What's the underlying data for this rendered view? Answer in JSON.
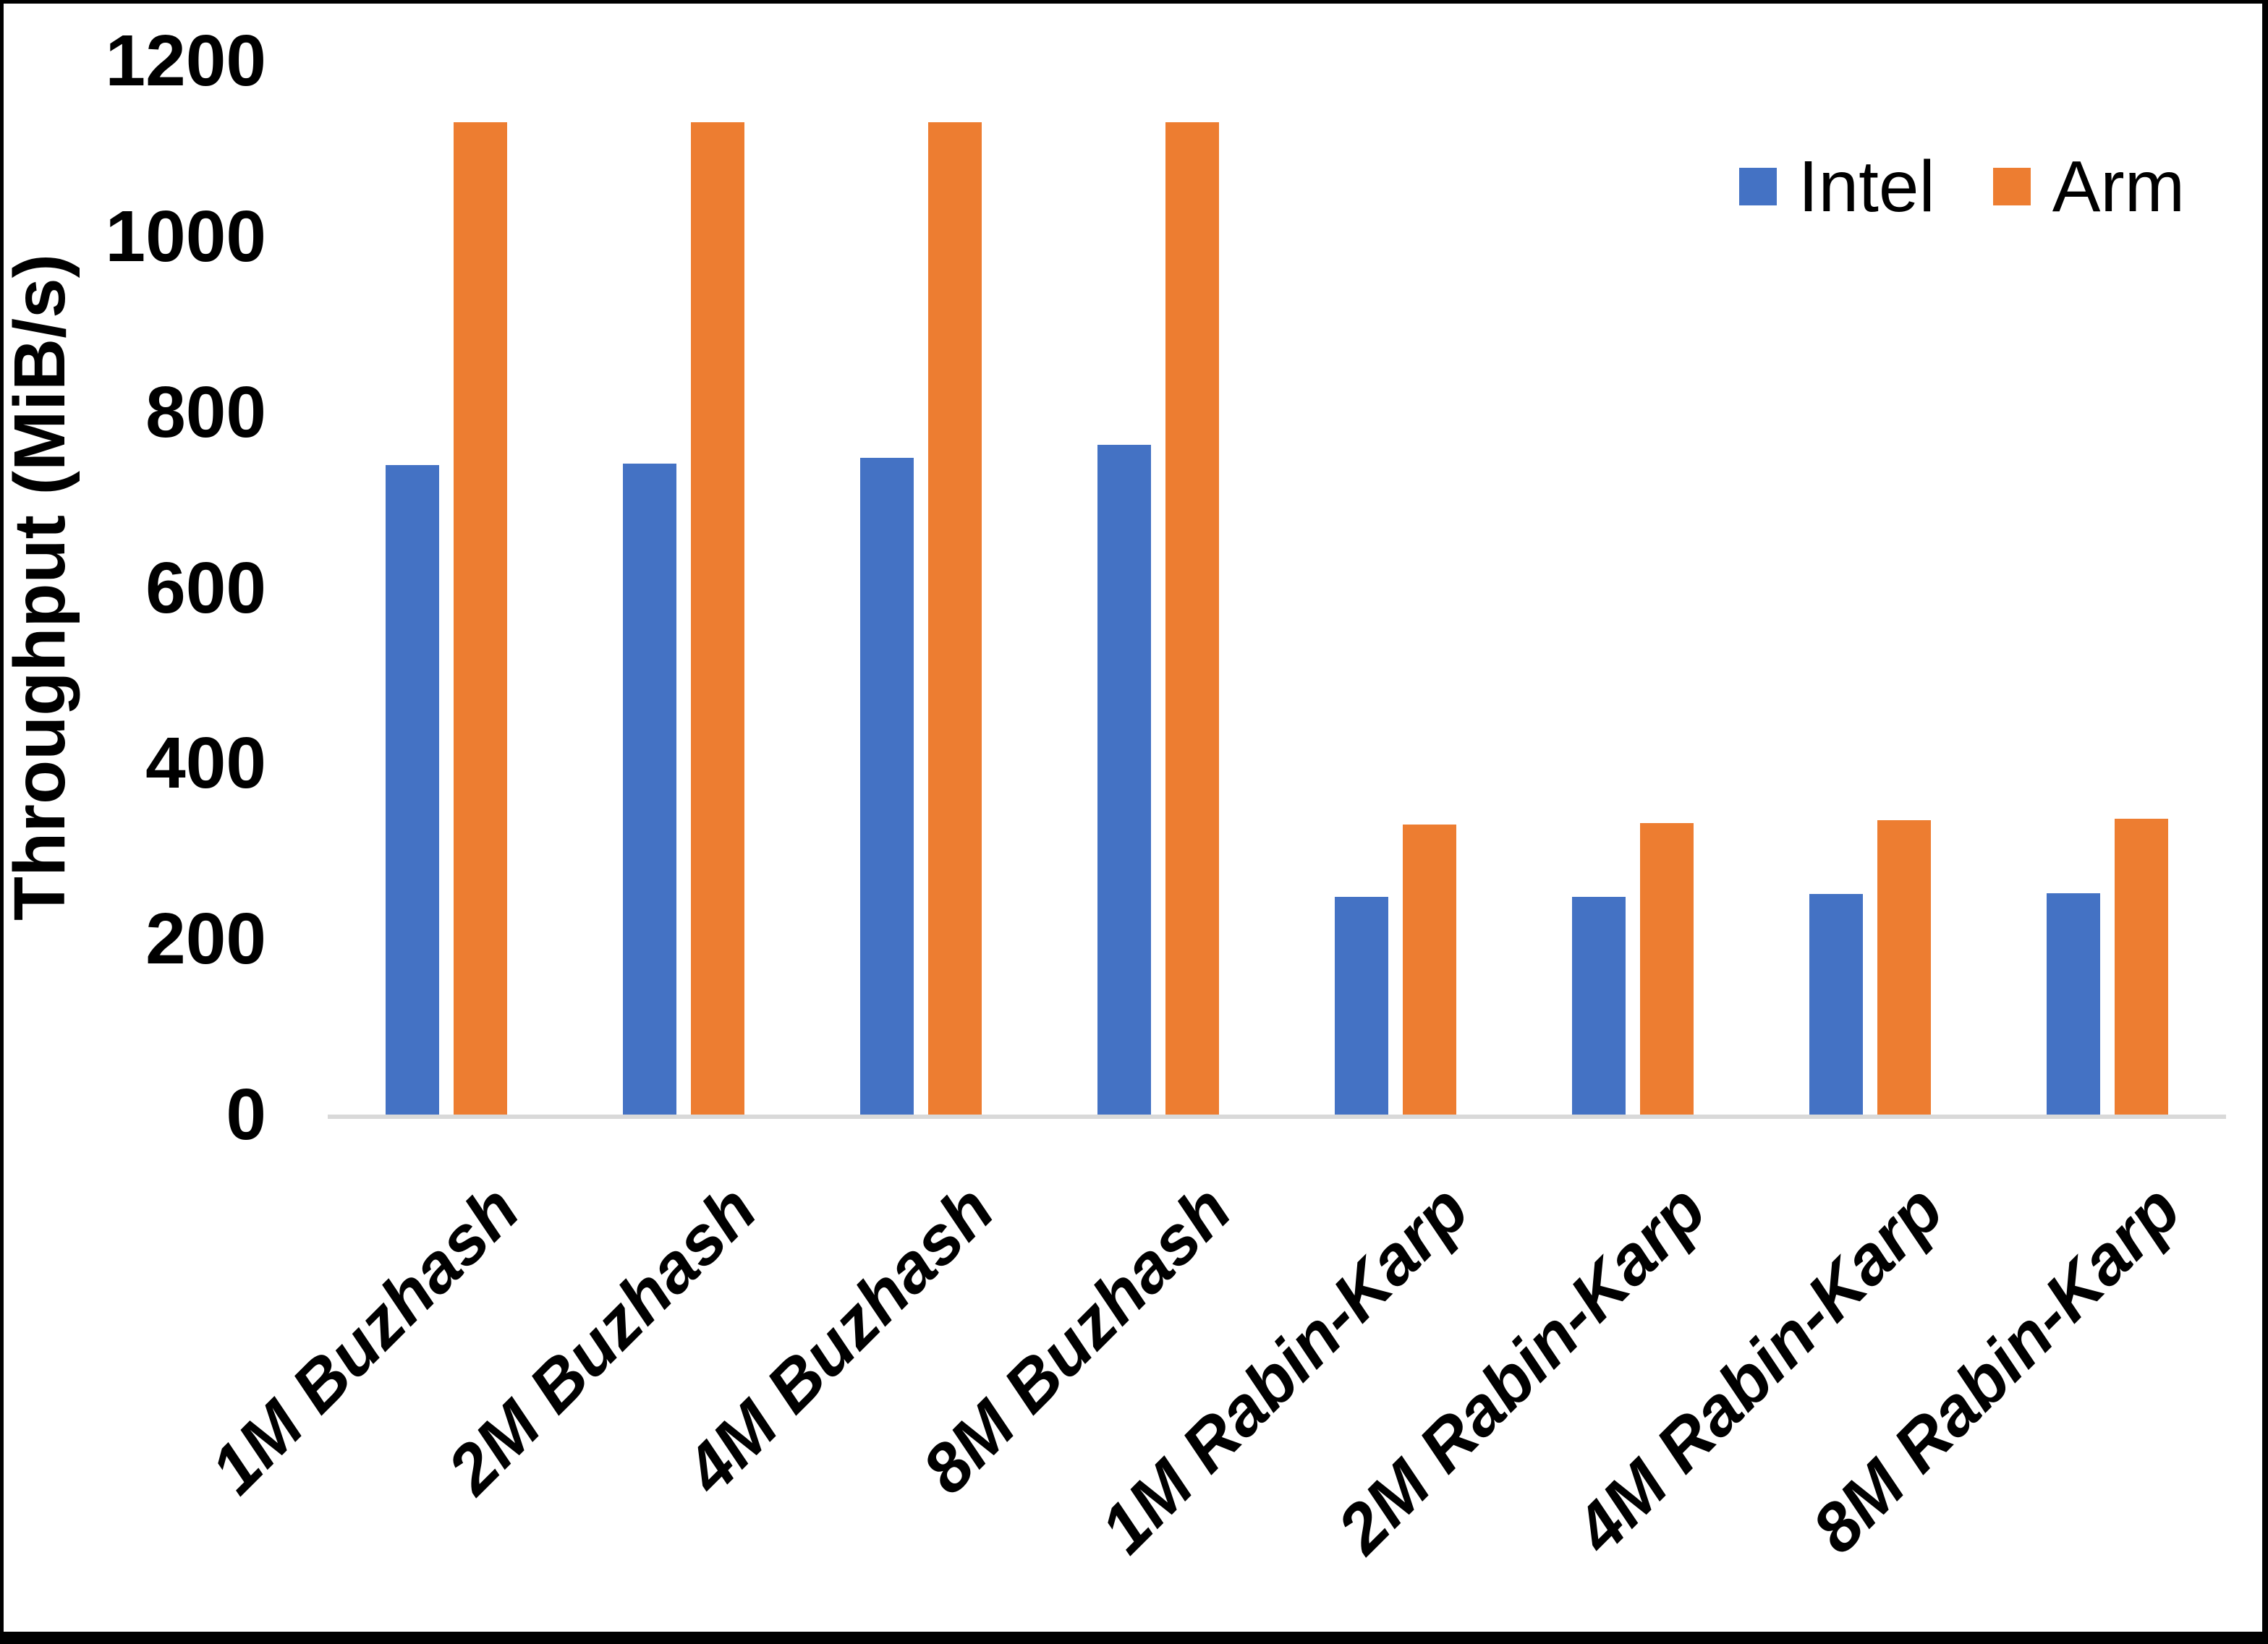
{
  "chart_data": {
    "type": "bar",
    "title": "",
    "ylabel": "Throughput (MiB/s)",
    "xlabel": "",
    "ylim": [
      0,
      1200
    ],
    "ytick_step": 200,
    "ytick_labels": [
      "0",
      "200",
      "400",
      "600",
      "800",
      "1000",
      "1200"
    ],
    "grid": false,
    "legend_position": "top-right",
    "categories": [
      "1M Buzhash",
      "2M Buzhash",
      "4M Buzhash",
      "8M Buzhash",
      "1M Rabin-Karp",
      "2M Rabin-Karp",
      "4M Rabin-Karp",
      "8M Rabin-Karp"
    ],
    "series": [
      {
        "name": "Intel",
        "color": "#4472C4",
        "values": [
          740,
          741,
          748,
          763,
          248,
          248,
          251,
          252
        ]
      },
      {
        "name": "Arm",
        "color": "#ED7D31",
        "values": [
          1130,
          1130,
          1130,
          1130,
          330,
          332,
          335,
          337
        ]
      }
    ],
    "colors": {
      "intel_bar": "#4472C4",
      "arm_bar": "#ED7D31",
      "axis_line": "#D9D9D9",
      "text": "#000000",
      "background": "#FFFFFF",
      "frame": "#000000"
    }
  }
}
